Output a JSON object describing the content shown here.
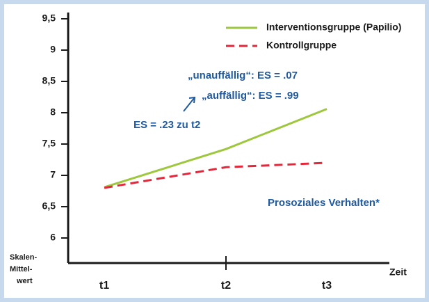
{
  "chart_data": {
    "type": "line",
    "categories": [
      "t1",
      "t2",
      "t3"
    ],
    "series": [
      {
        "name": "Interventionsgruppe (Papilio)",
        "color": "#9dc73d",
        "dash": false,
        "values": [
          6.81,
          7.42,
          8.06
        ]
      },
      {
        "name": "Kontrollgruppe",
        "color": "#e4283c",
        "dash": true,
        "values": [
          6.8,
          7.13,
          7.2
        ]
      }
    ],
    "ylim": [
      5.6,
      9.6
    ],
    "yticks": [
      6,
      {
        "value": 6.5,
        "label": "6,5"
      },
      7,
      {
        "value": 7.5,
        "label": "7,5"
      },
      8,
      {
        "value": 8.5,
        "label": "8,5"
      },
      9,
      {
        "value": 9.5,
        "label": "9,5"
      }
    ],
    "y_label": [
      "Skalen-",
      "Mittel-",
      "wert"
    ],
    "x_label": "Zeit",
    "annotations": [
      "„unauffällig“: ES = .07",
      "„auffällig“: ES = .99",
      "ES = .23 zu t2",
      "Prosoziales Verhalten*"
    ],
    "legend": "top-right"
  }
}
